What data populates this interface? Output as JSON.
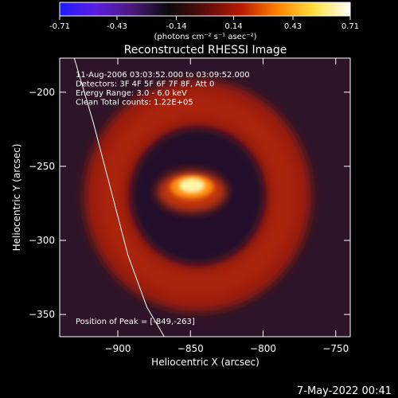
{
  "chart_data": {
    "type": "heatmap",
    "title": "Reconstructed RHESSI Image",
    "xlabel": "Heliocentric X (arcsec)",
    "ylabel": "Heliocentric Y (arcsec)",
    "xlim": [
      -940,
      -740
    ],
    "ylim": [
      -365,
      -177
    ],
    "x_ticks": [
      -900,
      -850,
      -800,
      -750
    ],
    "y_ticks": [
      -200,
      -250,
      -300,
      -350
    ],
    "colorbar": {
      "ticks": [
        "-0.71",
        "-0.43",
        "-0.14",
        "0.14",
        "0.43",
        "0.71"
      ],
      "unit_text": "(photons cm⁻² s⁻¹ asec⁻²)",
      "min": -0.71,
      "max": 0.71,
      "stops": [
        "#1d1dff",
        "#5b1fe0",
        "#4a1a7a",
        "#0a0a0a",
        "#5a0d0d",
        "#b81a00",
        "#ff8200",
        "#ffe040",
        "#ffffff"
      ]
    },
    "annotations": [
      "11-Aug-2006 03:03:52.000 to 03:09:52.000",
      "Detectors: 3F 4F 5F 6F 7F 8F, Att 0",
      "Energy Range: 3.0 - 6.0 keV",
      "Clean    Total counts: 1.22E+05"
    ],
    "peak_label": "Position of Peak = [-849,-263]",
    "peak": {
      "x": -849,
      "y": -263,
      "value": 0.71
    },
    "background_ring": {
      "x": -845,
      "y": -270,
      "inner_radius": 45,
      "outer_radius": 78,
      "value": 0.2
    },
    "limb_curve": {
      "x": [
        -930,
        -917,
        -905,
        -893,
        -880,
        -868
      ],
      "y": [
        -177,
        -220,
        -265,
        -310,
        -345,
        -365
      ]
    }
  },
  "footer": {
    "date": "7-May-2022 00:41"
  }
}
